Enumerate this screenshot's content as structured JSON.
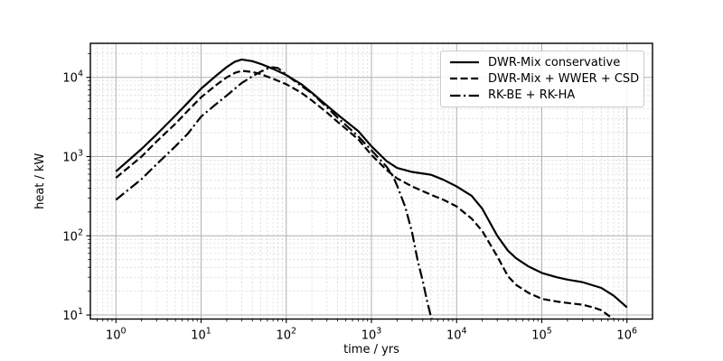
{
  "figure": {
    "background": "#ffffff",
    "curve_color": "#000000",
    "grid_major_color": "#b0b0b0",
    "grid_minor_color": "#d9d9d9",
    "legend_title": ""
  },
  "chart_data": {
    "type": "line",
    "title": "",
    "xlabel": "time / yrs",
    "ylabel": "heat / kW",
    "x_scale": "log",
    "y_scale": "log",
    "xlim": [
      0.501,
      1995000
    ],
    "ylim": [
      8.9,
      26900
    ],
    "x_ticks": [
      "10^0",
      "10^1",
      "10^2",
      "10^3",
      "10^4",
      "10^5",
      "10^6"
    ],
    "y_ticks": [
      "10^1",
      "10^2",
      "10^3",
      "10^4"
    ],
    "grid": "major+minor",
    "legend_position": "upper right",
    "series": [
      {
        "name": "DWR-Mix conservative",
        "style": "solid",
        "color": "#000000",
        "points": [
          [
            1,
            650
          ],
          [
            2,
            1250
          ],
          [
            3,
            1900
          ],
          [
            5,
            3300
          ],
          [
            7,
            4800
          ],
          [
            10,
            7200
          ],
          [
            15,
            10500
          ],
          [
            20,
            13500
          ],
          [
            25,
            15800
          ],
          [
            30,
            16800
          ],
          [
            40,
            16000
          ],
          [
            50,
            14800
          ],
          [
            70,
            12800
          ],
          [
            100,
            10700
          ],
          [
            150,
            8200
          ],
          [
            200,
            6400
          ],
          [
            300,
            4400
          ],
          [
            400,
            3400
          ],
          [
            500,
            2800
          ],
          [
            700,
            2100
          ],
          [
            1000,
            1350
          ],
          [
            1500,
            880
          ],
          [
            2000,
            720
          ],
          [
            3000,
            640
          ],
          [
            5000,
            590
          ],
          [
            7000,
            510
          ],
          [
            10000,
            420
          ],
          [
            15000,
            320
          ],
          [
            20000,
            220
          ],
          [
            30000,
            100
          ],
          [
            40000,
            65
          ],
          [
            50000,
            52
          ],
          [
            70000,
            41
          ],
          [
            100000,
            34
          ],
          [
            150000,
            30
          ],
          [
            200000,
            28
          ],
          [
            300000,
            26
          ],
          [
            500000,
            22
          ],
          [
            700000,
            17.5
          ],
          [
            1000000,
            12.5
          ]
        ]
      },
      {
        "name": "DWR-Mix + WWER + CSD",
        "style": "dashed",
        "color": "#000000",
        "points": [
          [
            1,
            540
          ],
          [
            2,
            1000
          ],
          [
            3,
            1550
          ],
          [
            5,
            2600
          ],
          [
            7,
            3800
          ],
          [
            10,
            5600
          ],
          [
            15,
            8000
          ],
          [
            20,
            10000
          ],
          [
            25,
            11400
          ],
          [
            30,
            12100
          ],
          [
            40,
            11700
          ],
          [
            50,
            11000
          ],
          [
            70,
            9600
          ],
          [
            100,
            8200
          ],
          [
            150,
            6400
          ],
          [
            200,
            5100
          ],
          [
            300,
            3600
          ],
          [
            400,
            2750
          ],
          [
            500,
            2250
          ],
          [
            700,
            1650
          ],
          [
            1000,
            1050
          ],
          [
            1500,
            680
          ],
          [
            2000,
            530
          ],
          [
            3000,
            420
          ],
          [
            5000,
            330
          ],
          [
            7000,
            285
          ],
          [
            10000,
            235
          ],
          [
            15000,
            165
          ],
          [
            20000,
            115
          ],
          [
            30000,
            55
          ],
          [
            40000,
            31
          ],
          [
            50000,
            24
          ],
          [
            70000,
            19
          ],
          [
            100000,
            16
          ],
          [
            150000,
            14.8
          ],
          [
            200000,
            14.2
          ],
          [
            300000,
            13.5
          ],
          [
            400000,
            12.5
          ],
          [
            500000,
            11.5
          ],
          [
            700000,
            8.8
          ],
          [
            1000000,
            6.5
          ]
        ]
      },
      {
        "name": "RK-BE + RK-HA",
        "style": "dashdot",
        "color": "#000000",
        "points": [
          [
            1,
            285
          ],
          [
            2,
            520
          ],
          [
            3,
            800
          ],
          [
            5,
            1350
          ],
          [
            7,
            1950
          ],
          [
            10,
            3200
          ],
          [
            15,
            4600
          ],
          [
            20,
            5900
          ],
          [
            30,
            8500
          ],
          [
            40,
            10300
          ],
          [
            50,
            11800
          ],
          [
            60,
            12900
          ],
          [
            70,
            13400
          ],
          [
            80,
            13100
          ],
          [
            100,
            10800
          ],
          [
            150,
            7800
          ],
          [
            200,
            6300
          ],
          [
            300,
            4200
          ],
          [
            400,
            3100
          ],
          [
            500,
            2500
          ],
          [
            700,
            1800
          ],
          [
            1000,
            1200
          ],
          [
            1500,
            750
          ],
          [
            1800,
            560
          ],
          [
            2000,
            430
          ],
          [
            2500,
            230
          ],
          [
            3000,
            110
          ],
          [
            3500,
            48
          ],
          [
            4000,
            27
          ],
          [
            4500,
            15
          ],
          [
            5000,
            9.5
          ],
          [
            5500,
            7
          ]
        ]
      }
    ]
  }
}
